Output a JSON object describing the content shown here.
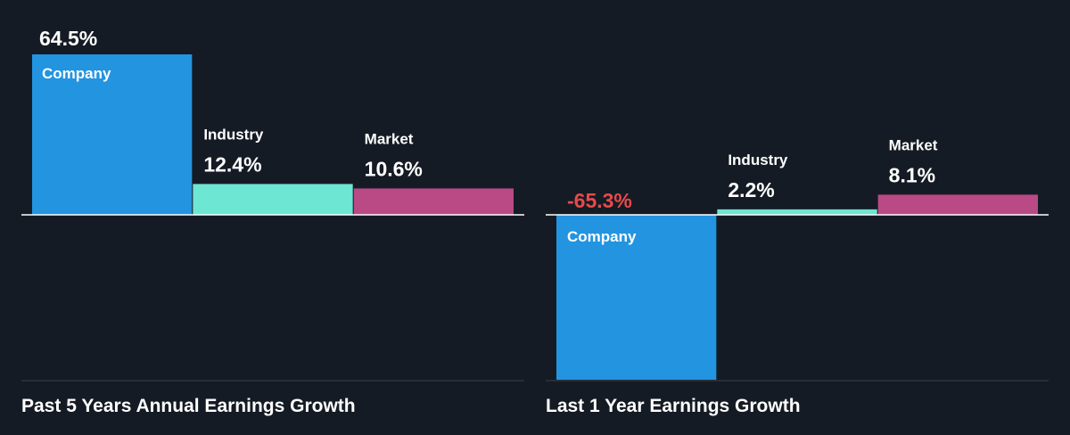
{
  "colors": {
    "background": "#151b24",
    "company": "#2394e0",
    "industry": "#6ee6d4",
    "market": "#b94a86",
    "negative_label": "#e84a4a",
    "axis": "#ffffff",
    "baseline": "#3a414b"
  },
  "chart_data": [
    {
      "type": "bar",
      "title": "Past 5 Years Annual Earnings Growth",
      "categories": [
        "Company",
        "Industry",
        "Market"
      ],
      "values": [
        64.5,
        12.4,
        10.6
      ],
      "value_labels": [
        "64.5%",
        "12.4%",
        "10.6%"
      ],
      "unit": "%",
      "ylim": [
        -65.3,
        64.5
      ],
      "grid": false,
      "legend": "none"
    },
    {
      "type": "bar",
      "title": "Last 1 Year Earnings Growth",
      "categories": [
        "Company",
        "Industry",
        "Market"
      ],
      "values": [
        -65.3,
        2.2,
        8.1
      ],
      "value_labels": [
        "-65.3%",
        "2.2%",
        "8.1%"
      ],
      "unit": "%",
      "ylim": [
        -65.3,
        64.5
      ],
      "grid": false,
      "legend": "none"
    }
  ]
}
